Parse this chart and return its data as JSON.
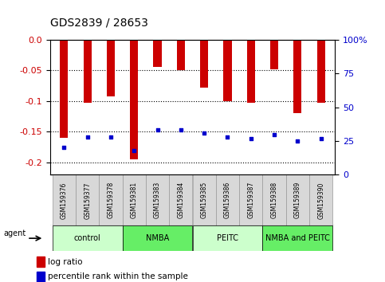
{
  "title": "GDS2839 / 28653",
  "samples": [
    "GSM159376",
    "GSM159377",
    "GSM159378",
    "GSM159381",
    "GSM159383",
    "GSM159384",
    "GSM159385",
    "GSM159386",
    "GSM159387",
    "GSM159388",
    "GSM159389",
    "GSM159390"
  ],
  "log_ratios": [
    -0.16,
    -0.103,
    -0.092,
    -0.195,
    -0.045,
    -0.05,
    -0.078,
    -0.1,
    -0.103,
    -0.048,
    -0.12,
    -0.103
  ],
  "percentile_ranks": [
    20,
    28,
    28,
    18,
    33,
    33,
    31,
    28,
    27,
    30,
    25,
    27
  ],
  "groups": [
    {
      "label": "control",
      "start": 0,
      "end": 3,
      "color": "#ccffcc"
    },
    {
      "label": "NMBA",
      "start": 3,
      "end": 6,
      "color": "#66ee66"
    },
    {
      "label": "PEITC",
      "start": 6,
      "end": 9,
      "color": "#ccffcc"
    },
    {
      "label": "NMBA and PEITC",
      "start": 9,
      "end": 12,
      "color": "#66ee66"
    }
  ],
  "ylim_left": [
    -0.22,
    0.0
  ],
  "ylim_right": [
    0,
    100
  ],
  "yticks_left": [
    0.0,
    -0.05,
    -0.1,
    -0.15,
    -0.2
  ],
  "yticks_right": [
    0,
    25,
    50,
    75,
    100
  ],
  "bar_color": "#cc0000",
  "dot_color": "#0000cc",
  "background_color": "#ffffff",
  "plot_bg_color": "#ffffff",
  "title_fontsize": 10,
  "tick_label_fontsize": 6.5,
  "axis_label_color_left": "#cc0000",
  "axis_label_color_right": "#0000cc",
  "bar_width": 0.35
}
